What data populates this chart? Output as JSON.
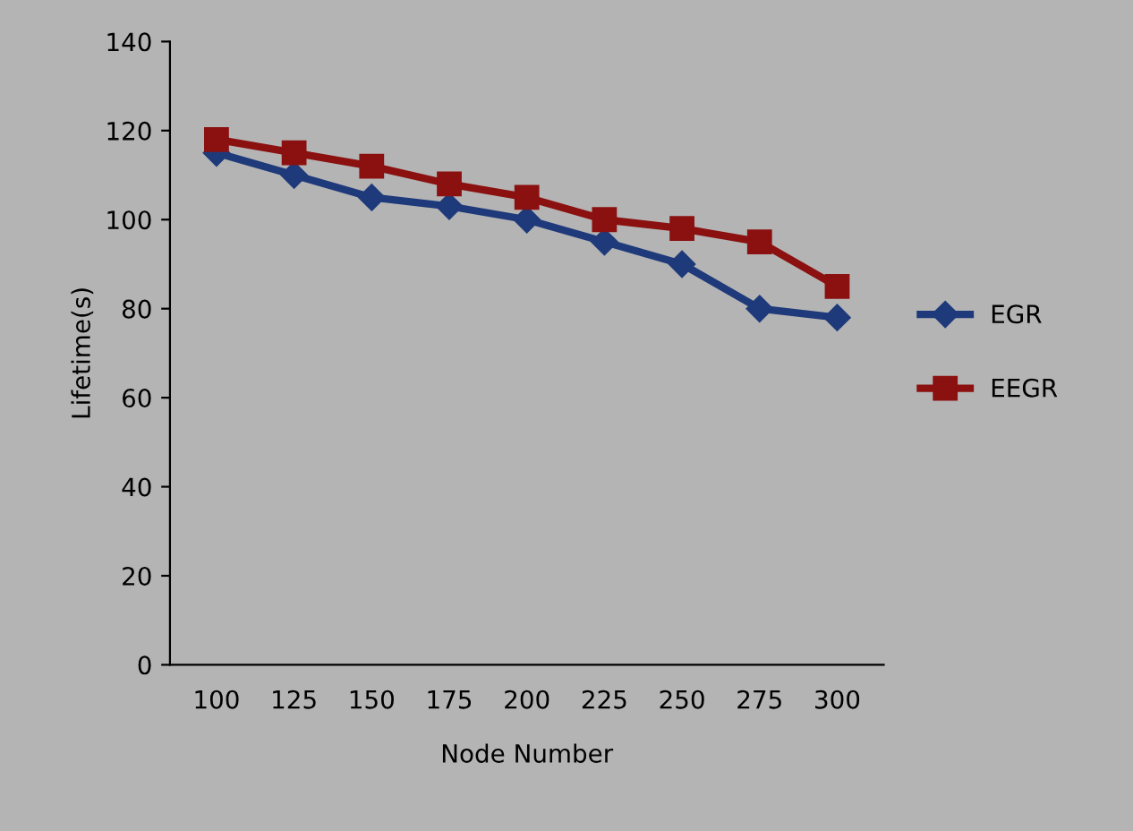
{
  "chart_data": {
    "type": "line",
    "xlabel": "Node Number",
    "ylabel": "Lifetime(s)",
    "categories": [
      "100",
      "125",
      "150",
      "175",
      "200",
      "225",
      "250",
      "275",
      "300"
    ],
    "series": [
      {
        "name": "EGR",
        "color": "#1f3a7a",
        "marker": "diamond",
        "values": [
          115,
          110,
          105,
          103,
          100,
          95,
          90,
          80,
          78
        ]
      },
      {
        "name": "EEGR",
        "color": "#8b1010",
        "marker": "square",
        "values": [
          118,
          115,
          112,
          108,
          105,
          100,
          98,
          95,
          85
        ]
      }
    ],
    "ylim": [
      0,
      140
    ],
    "yticks": [
      0,
      20,
      40,
      60,
      80,
      100,
      120,
      140
    ],
    "legend": "right"
  }
}
